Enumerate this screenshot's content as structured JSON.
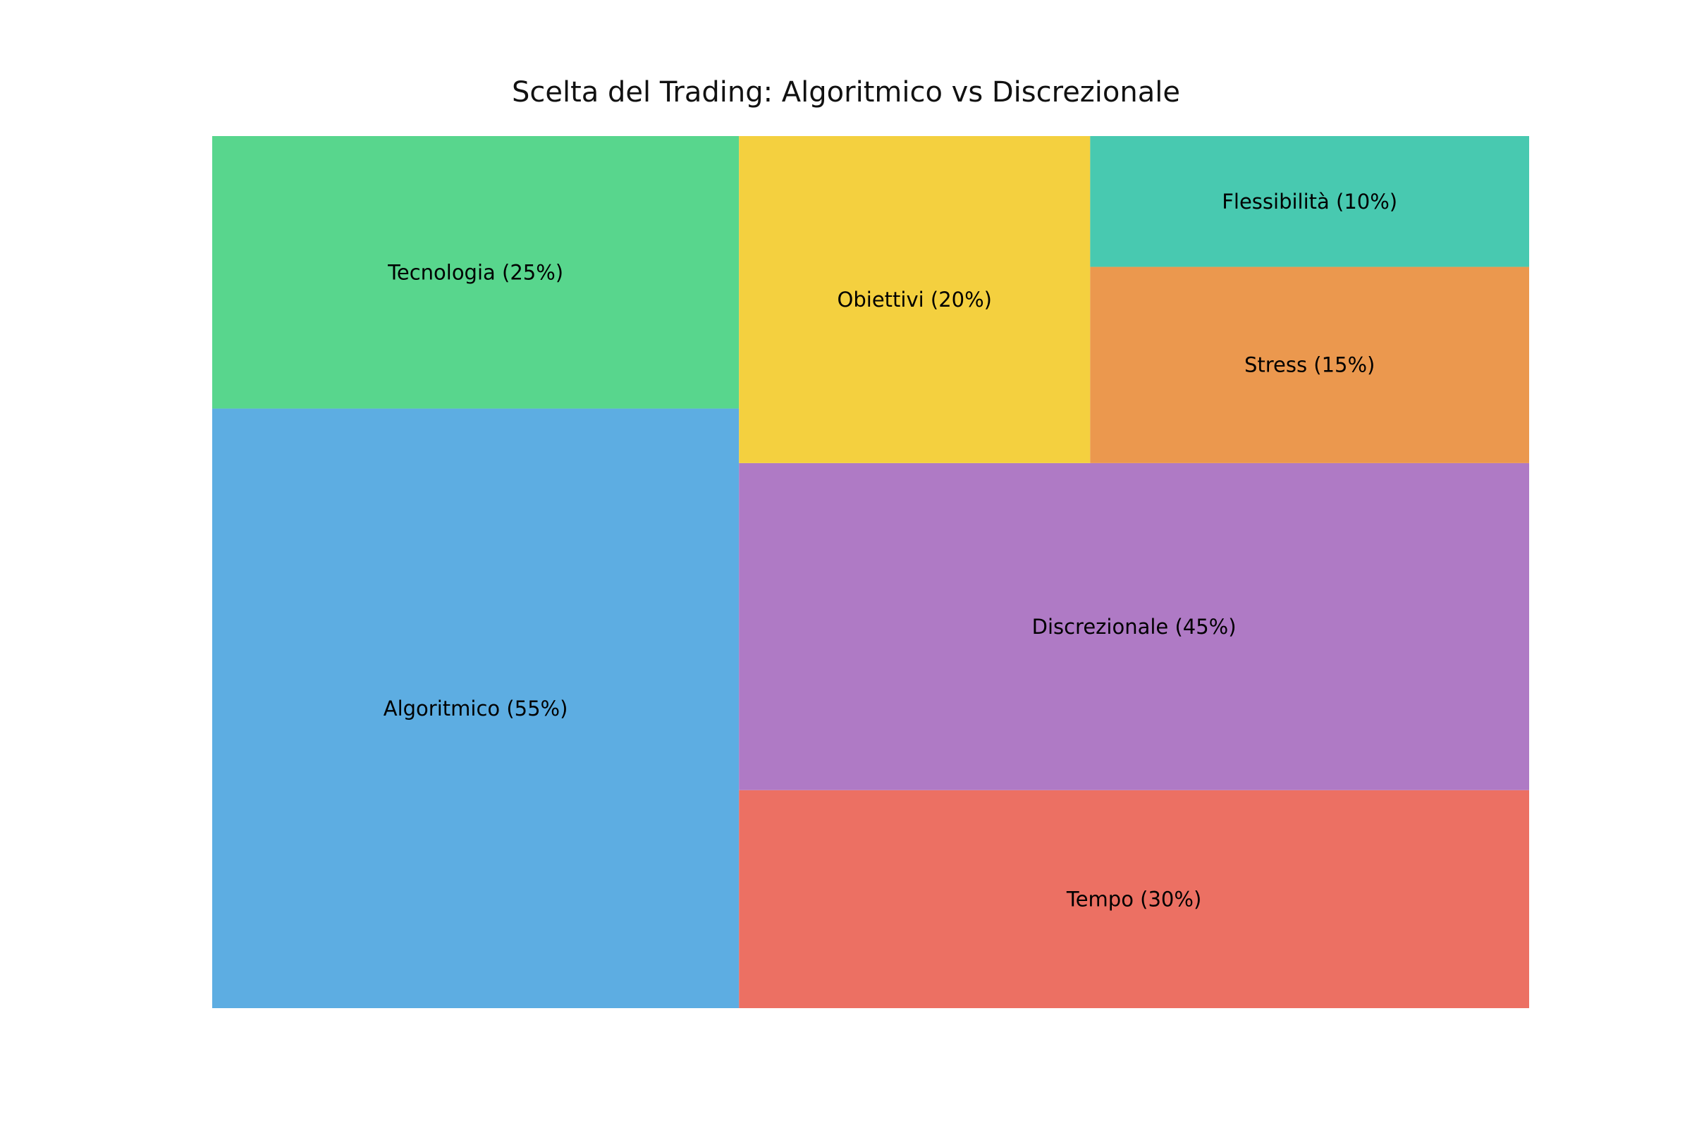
{
  "chart_data": {
    "type": "treemap",
    "title": "Scelta del Trading: Algoritmico vs Discrezionale",
    "items": [
      {
        "label": "Algoritmico (55%)",
        "name": "Algoritmico",
        "value": 55,
        "color": "#5dade2"
      },
      {
        "label": "Tecnologia (25%)",
        "name": "Tecnologia",
        "value": 25,
        "color": "#58d68d"
      },
      {
        "label": "Discrezionale (45%)",
        "name": "Discrezionale",
        "value": 45,
        "color": "#af7ac5"
      },
      {
        "label": "Tempo (30%)",
        "name": "Tempo",
        "value": 30,
        "color": "#ec7063"
      },
      {
        "label": "Obiettivi (20%)",
        "name": "Obiettivi",
        "value": 20,
        "color": "#f4d03f"
      },
      {
        "label": "Stress (15%)",
        "name": "Stress",
        "value": 15,
        "color": "#eb984e"
      },
      {
        "label": "Flessibilità (10%)",
        "name": "Flessibilità",
        "value": 10,
        "color": "#48c9b0"
      }
    ]
  }
}
